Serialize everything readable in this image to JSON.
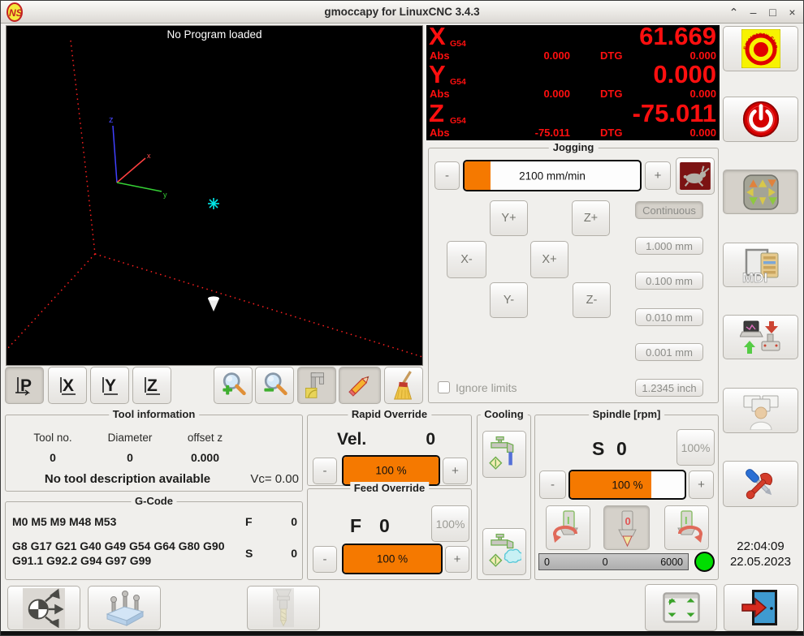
{
  "window": {
    "title": "gmoccapy for LinuxCNC  3.4.3",
    "controls": {
      "shade": "⌃",
      "minimize": "–",
      "maximize": "□",
      "close": "×"
    }
  },
  "icons": {
    "logo_text": "NS",
    "estop_text": "Emergency-Stop",
    "mdi_text": "MDI"
  },
  "preview": {
    "message": "No Program loaded",
    "axis_z_label": "z",
    "axis_x_label": "x",
    "axis_y_label": "y"
  },
  "view_toolbar": {
    "p": "P",
    "x": "X",
    "y": "Y",
    "z": "Z"
  },
  "dro": {
    "axes": [
      {
        "letter": "X",
        "system": "G54",
        "value": "61.669",
        "abs_label": "Abs",
        "abs": "0.000",
        "dtg_label": "DTG",
        "dtg": "0.000"
      },
      {
        "letter": "Y",
        "system": "G54",
        "value": "0.000",
        "abs_label": "Abs",
        "abs": "0.000",
        "dtg_label": "DTG",
        "dtg": "0.000"
      },
      {
        "letter": "Z",
        "system": "G54",
        "value": "-75.011",
        "abs_label": "Abs",
        "abs": "-75.011",
        "dtg_label": "DTG",
        "dtg": "0.000"
      }
    ]
  },
  "jogging": {
    "title": "Jogging",
    "minus": "-",
    "plus": "+",
    "speed_value": "2100 mm/min",
    "speed_fill_pct": 15,
    "jog_buttons": {
      "y_plus": "Y+",
      "z_plus": "Z+",
      "x_minus": "X-",
      "x_plus": "X+",
      "y_minus": "Y-",
      "z_minus": "Z-"
    },
    "increments": [
      "Continuous",
      "1.000 mm",
      "0.100 mm",
      "0.010 mm",
      "0.001 mm",
      "1.2345 inch"
    ],
    "ignore_limits_label": "Ignore limits"
  },
  "tool_info": {
    "title": "Tool information",
    "col_tool_no": "Tool no.",
    "col_diameter": "Diameter",
    "col_offset_z": "offset z",
    "tool_no": "0",
    "diameter": "0",
    "offset_z": "0.000",
    "description": "No tool description available",
    "vc": "Vc= 0.00"
  },
  "gcode": {
    "title": "G-Code",
    "line1": "M0 M5 M9 M48 M53",
    "f_label": "F",
    "f_value": "0",
    "line2": "G8 G17 G21 G40 G49 G54 G64 G80 G90 G91.1 G92.2 G94 G97 G99",
    "s_label": "S",
    "s_value": "0"
  },
  "rapid_override": {
    "title": "Rapid Override",
    "vel_label": "Vel.",
    "vel_value": "0",
    "minus": "-",
    "plus": "+",
    "slider_text": "100 %",
    "fill_pct": 100
  },
  "feed_override": {
    "title": "Feed Override",
    "letter": "F",
    "value": "0",
    "reset": "100%",
    "minus": "-",
    "plus": "+",
    "slider_text": "100 %",
    "fill_pct": 100
  },
  "cooling": {
    "title": "Cooling"
  },
  "spindle": {
    "title": "Spindle [rpm]",
    "letter": "S",
    "value": "0",
    "reset": "100%",
    "minus": "-",
    "plus": "+",
    "slider_text": "100 %",
    "fill_pct": 71,
    "bar_left": "0",
    "bar_center": "0",
    "bar_right": "6000",
    "on_char": "I",
    "off_char": "0"
  },
  "clock": {
    "time": "22:04:09",
    "date": "22.05.2023"
  },
  "colors": {
    "accent_orange": "#f57900",
    "dro_red": "#ff0f0f",
    "led_green": "#00dd00",
    "estop_yellow": "#f7f200",
    "power_red": "#d50000"
  }
}
